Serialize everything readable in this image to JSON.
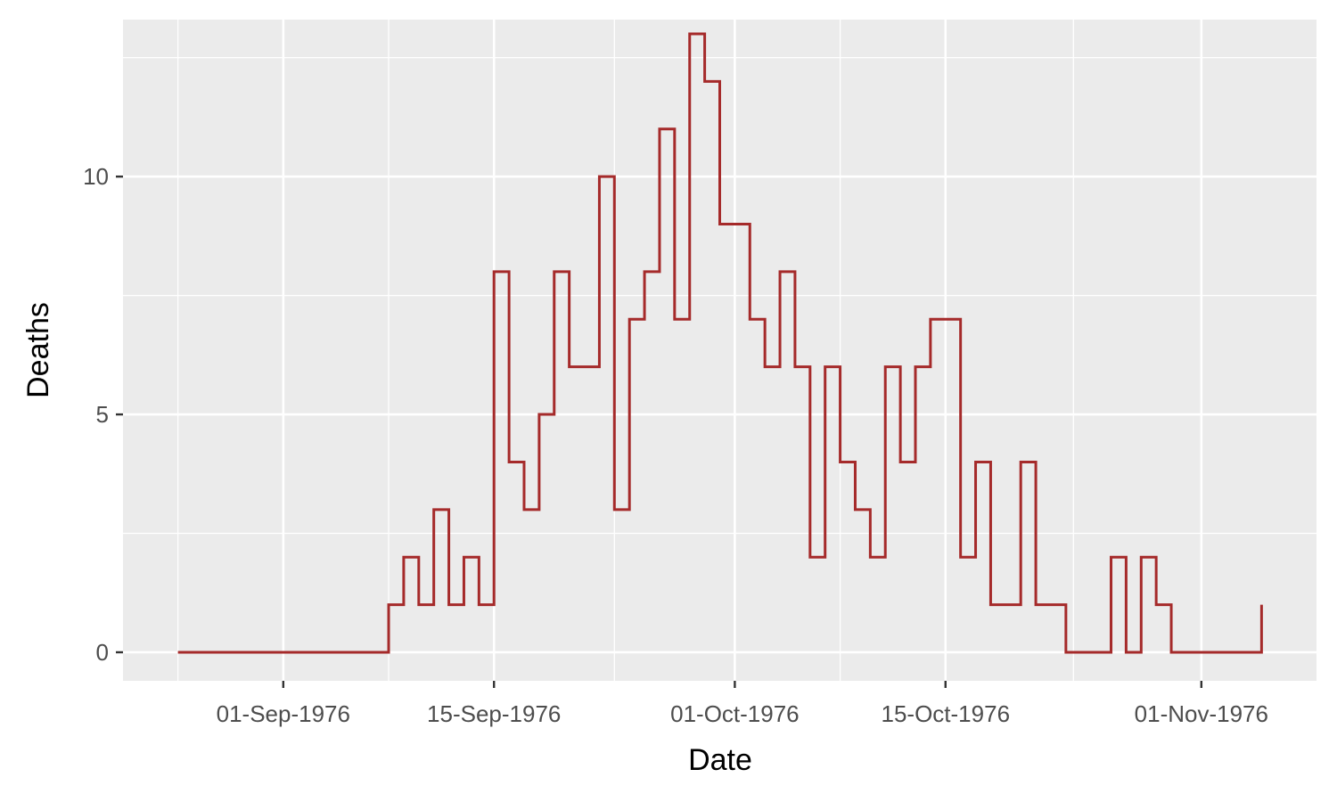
{
  "chart_data": {
    "type": "line",
    "step": true,
    "title": "",
    "xlabel": "Date",
    "ylabel": "Deaths",
    "x_start": "1976-08-25",
    "x_ticks": [
      "01-Sep-1976",
      "15-Sep-1976",
      "01-Oct-1976",
      "15-Oct-1976",
      "01-Nov-1976"
    ],
    "x_tick_dates": [
      "1976-09-01",
      "1976-09-15",
      "1976-10-01",
      "1976-10-15",
      "1976-11-01"
    ],
    "y_ticks": [
      0,
      5,
      10
    ],
    "ylim": [
      -0.6,
      13.3
    ],
    "grid": true,
    "line_color": "#a52a2a",
    "panel_color": "#ebebeb",
    "grid_color": "#ffffff",
    "values": [
      0,
      0,
      0,
      0,
      0,
      0,
      0,
      0,
      0,
      0,
      0,
      0,
      0,
      0,
      1,
      2,
      1,
      3,
      1,
      2,
      1,
      8,
      4,
      3,
      5,
      8,
      6,
      6,
      10,
      3,
      7,
      8,
      11,
      7,
      13,
      12,
      9,
      9,
      7,
      6,
      8,
      6,
      2,
      6,
      4,
      3,
      2,
      6,
      4,
      6,
      7,
      7,
      2,
      4,
      1,
      1,
      4,
      1,
      1,
      0,
      0,
      0,
      2,
      0,
      2,
      1,
      0,
      0,
      0,
      0,
      0,
      0,
      1
    ]
  }
}
